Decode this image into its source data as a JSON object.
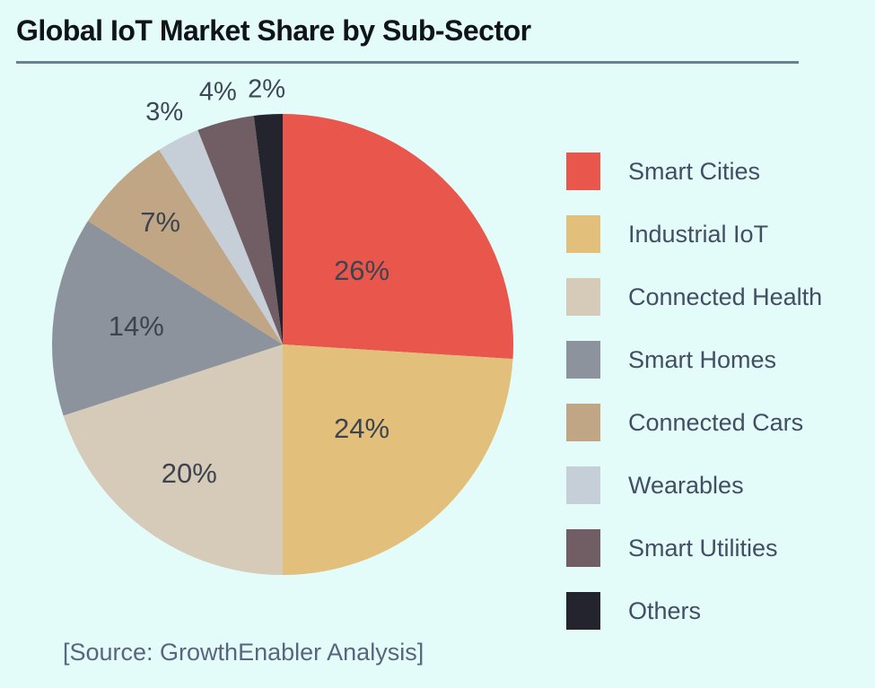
{
  "header": {
    "title": "Global IoT Market Share by Sub-Sector"
  },
  "chart_data": {
    "type": "pie",
    "title": "Global IoT Market Share by Sub-Sector",
    "labels": [
      "Smart Cities",
      "Industrial IoT",
      "Connected Health",
      "Smart Homes",
      "Connected Cars",
      "Wearables",
      "Smart Utilities",
      "Others"
    ],
    "values": [
      26,
      24,
      20,
      14,
      7,
      3,
      4,
      2
    ],
    "unit": "%",
    "data_labels": [
      "26%",
      "24%",
      "20%",
      "14%",
      "7%",
      "3%",
      "4%",
      "2%"
    ],
    "colors": [
      "#e8564c",
      "#e2bf7b",
      "#d6cab9",
      "#8d939d",
      "#c0a685",
      "#c6ced7",
      "#715d64",
      "#23242e"
    ],
    "start_angle_deg": 0,
    "direction": "clockwise",
    "legend_position": "right",
    "label_radius": [
      0.47,
      0.5,
      0.69,
      0.64,
      0.75,
      1.13,
      1.13,
      1.11
    ]
  },
  "source": {
    "text": "[Source: GrowthEnabler Analysis]"
  }
}
